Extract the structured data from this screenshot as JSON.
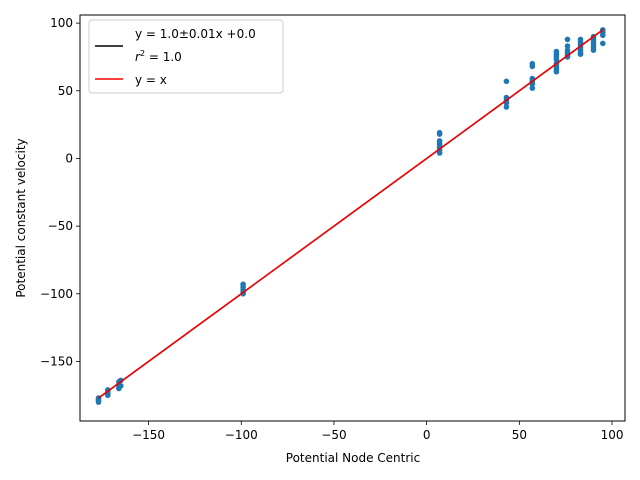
{
  "chart_data": {
    "type": "scatter",
    "xlabel": "Potential Node Centric",
    "ylabel": "Potential constant velocity",
    "xlim": [
      -187,
      107
    ],
    "ylim": [
      -194,
      106
    ],
    "xticks": [
      -150,
      -100,
      -50,
      0,
      50,
      100
    ],
    "xtick_labels": [
      "−150",
      "−100",
      "−50",
      "0",
      "50",
      "100"
    ],
    "yticks": [
      -150,
      -100,
      -50,
      0,
      50,
      100
    ],
    "ytick_labels": [
      "−150",
      "−100",
      "−50",
      "0",
      "50",
      "100"
    ],
    "grid": false,
    "legend_position": "top-left",
    "colors": {
      "points": "#1f77b4",
      "fit": "#000000",
      "identity": "#ff0000"
    },
    "legend": [
      {
        "label": "y = 1.0±0.01x +0.0",
        "color": "#000000"
      },
      {
        "label": "r",
        "sup": "2",
        "label_rest": " = 1.0",
        "color": null
      },
      {
        "label": "y = x",
        "color": "#ff0000"
      }
    ],
    "series": [
      {
        "type": "scatter",
        "points": [
          [
            -177,
            -177
          ],
          [
            -177,
            -179
          ],
          [
            -177,
            -180
          ],
          [
            -177,
            -178
          ],
          [
            -172,
            -172
          ],
          [
            -172,
            -174
          ],
          [
            -172,
            -175
          ],
          [
            -172,
            -171
          ],
          [
            -166,
            -165
          ],
          [
            -166,
            -167
          ],
          [
            -166,
            -169
          ],
          [
            -166,
            -170
          ],
          [
            -165,
            -164
          ],
          [
            -165,
            -168
          ],
          [
            -99,
            -93
          ],
          [
            -99,
            -95
          ],
          [
            -99,
            -97
          ],
          [
            -99,
            -99
          ],
          [
            -99,
            -100
          ],
          [
            7,
            19
          ],
          [
            7,
            18
          ],
          [
            7,
            13
          ],
          [
            7,
            11
          ],
          [
            7,
            10
          ],
          [
            7,
            8
          ],
          [
            7,
            6
          ],
          [
            7,
            4
          ],
          [
            43,
            57
          ],
          [
            43,
            45
          ],
          [
            43,
            43
          ],
          [
            43,
            41
          ],
          [
            43,
            38
          ],
          [
            57,
            70
          ],
          [
            57,
            68
          ],
          [
            57,
            59
          ],
          [
            57,
            57
          ],
          [
            57,
            55
          ],
          [
            57,
            52
          ],
          [
            70,
            79
          ],
          [
            70,
            77
          ],
          [
            70,
            75
          ],
          [
            70,
            73
          ],
          [
            70,
            70
          ],
          [
            70,
            68
          ],
          [
            70,
            66
          ],
          [
            70,
            64
          ],
          [
            76,
            88
          ],
          [
            76,
            83
          ],
          [
            76,
            80
          ],
          [
            76,
            78
          ],
          [
            76,
            76
          ],
          [
            76,
            75
          ],
          [
            83,
            88
          ],
          [
            83,
            86
          ],
          [
            83,
            84
          ],
          [
            83,
            82
          ],
          [
            83,
            80
          ],
          [
            83,
            78
          ],
          [
            83,
            77
          ],
          [
            90,
            90
          ],
          [
            90,
            88
          ],
          [
            90,
            86
          ],
          [
            90,
            84
          ],
          [
            90,
            82
          ],
          [
            90,
            80
          ],
          [
            95,
            95
          ],
          [
            95,
            93
          ],
          [
            95,
            91
          ],
          [
            95,
            85
          ]
        ]
      },
      {
        "type": "line",
        "name": "fit",
        "x": [
          -177,
          95
        ],
        "y": [
          -177,
          95
        ]
      },
      {
        "type": "line",
        "name": "identity",
        "x": [
          -177,
          95
        ],
        "y": [
          -177,
          95
        ]
      }
    ]
  }
}
